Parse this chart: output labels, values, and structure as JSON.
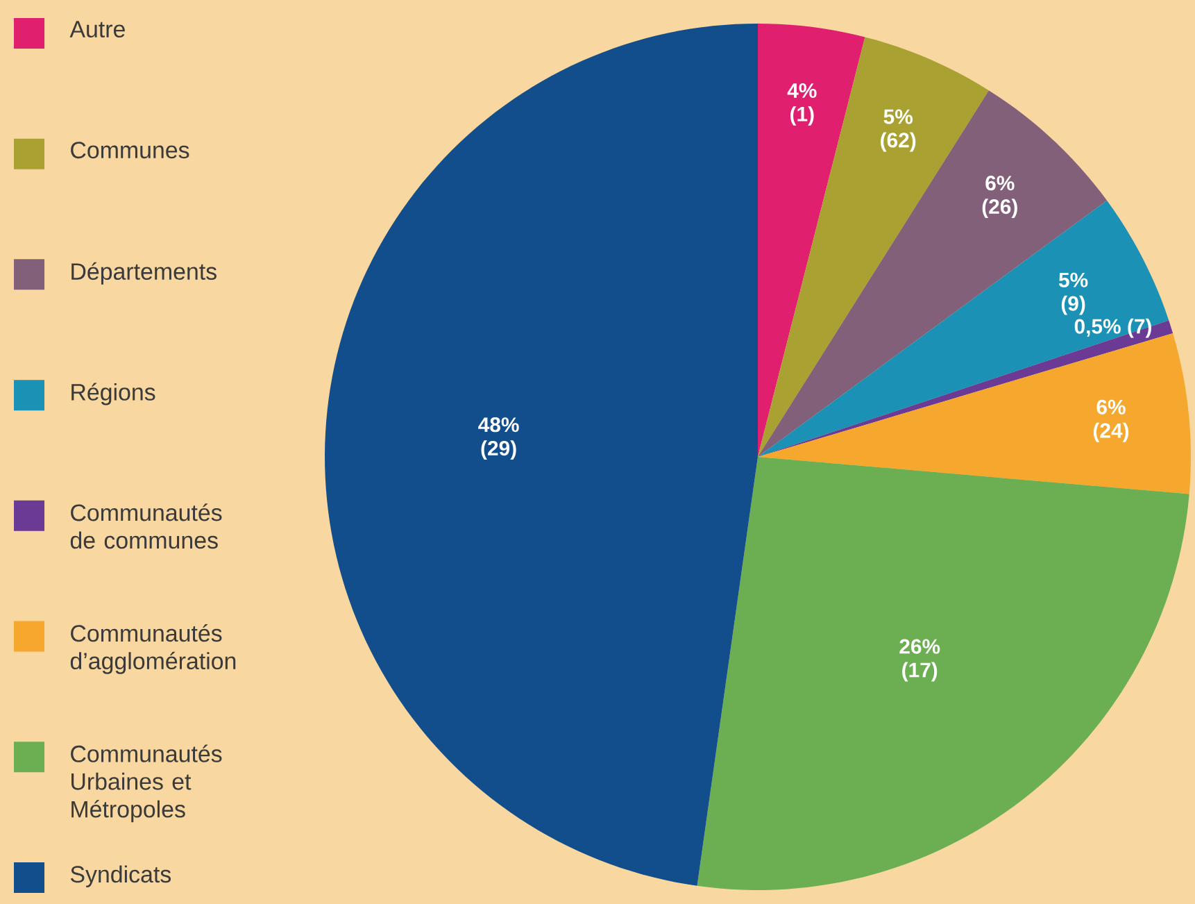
{
  "chart_data": {
    "type": "pie",
    "categories": [
      "Autre",
      "Communes",
      "Départements",
      "Régions",
      "Communautés de communes",
      "Communautés d’agglomération",
      "Communautés Urbaines et Métropoles",
      "Syndicats"
    ],
    "values": [
      4,
      5,
      6,
      5,
      0.5,
      6,
      26,
      48
    ],
    "colors": [
      "#e0206f",
      "#a9a232",
      "#83607a",
      "#1b91b5",
      "#6a3a94",
      "#f5a82d",
      "#6cae52",
      "#124e8c"
    ],
    "value_labels": [
      "4% (1)",
      "5% (62)",
      "6% (26)",
      "5% (9)",
      "0,5% (7)",
      "6% (24)",
      "26% (17)",
      "48% (29)"
    ],
    "legend": "left"
  }
}
